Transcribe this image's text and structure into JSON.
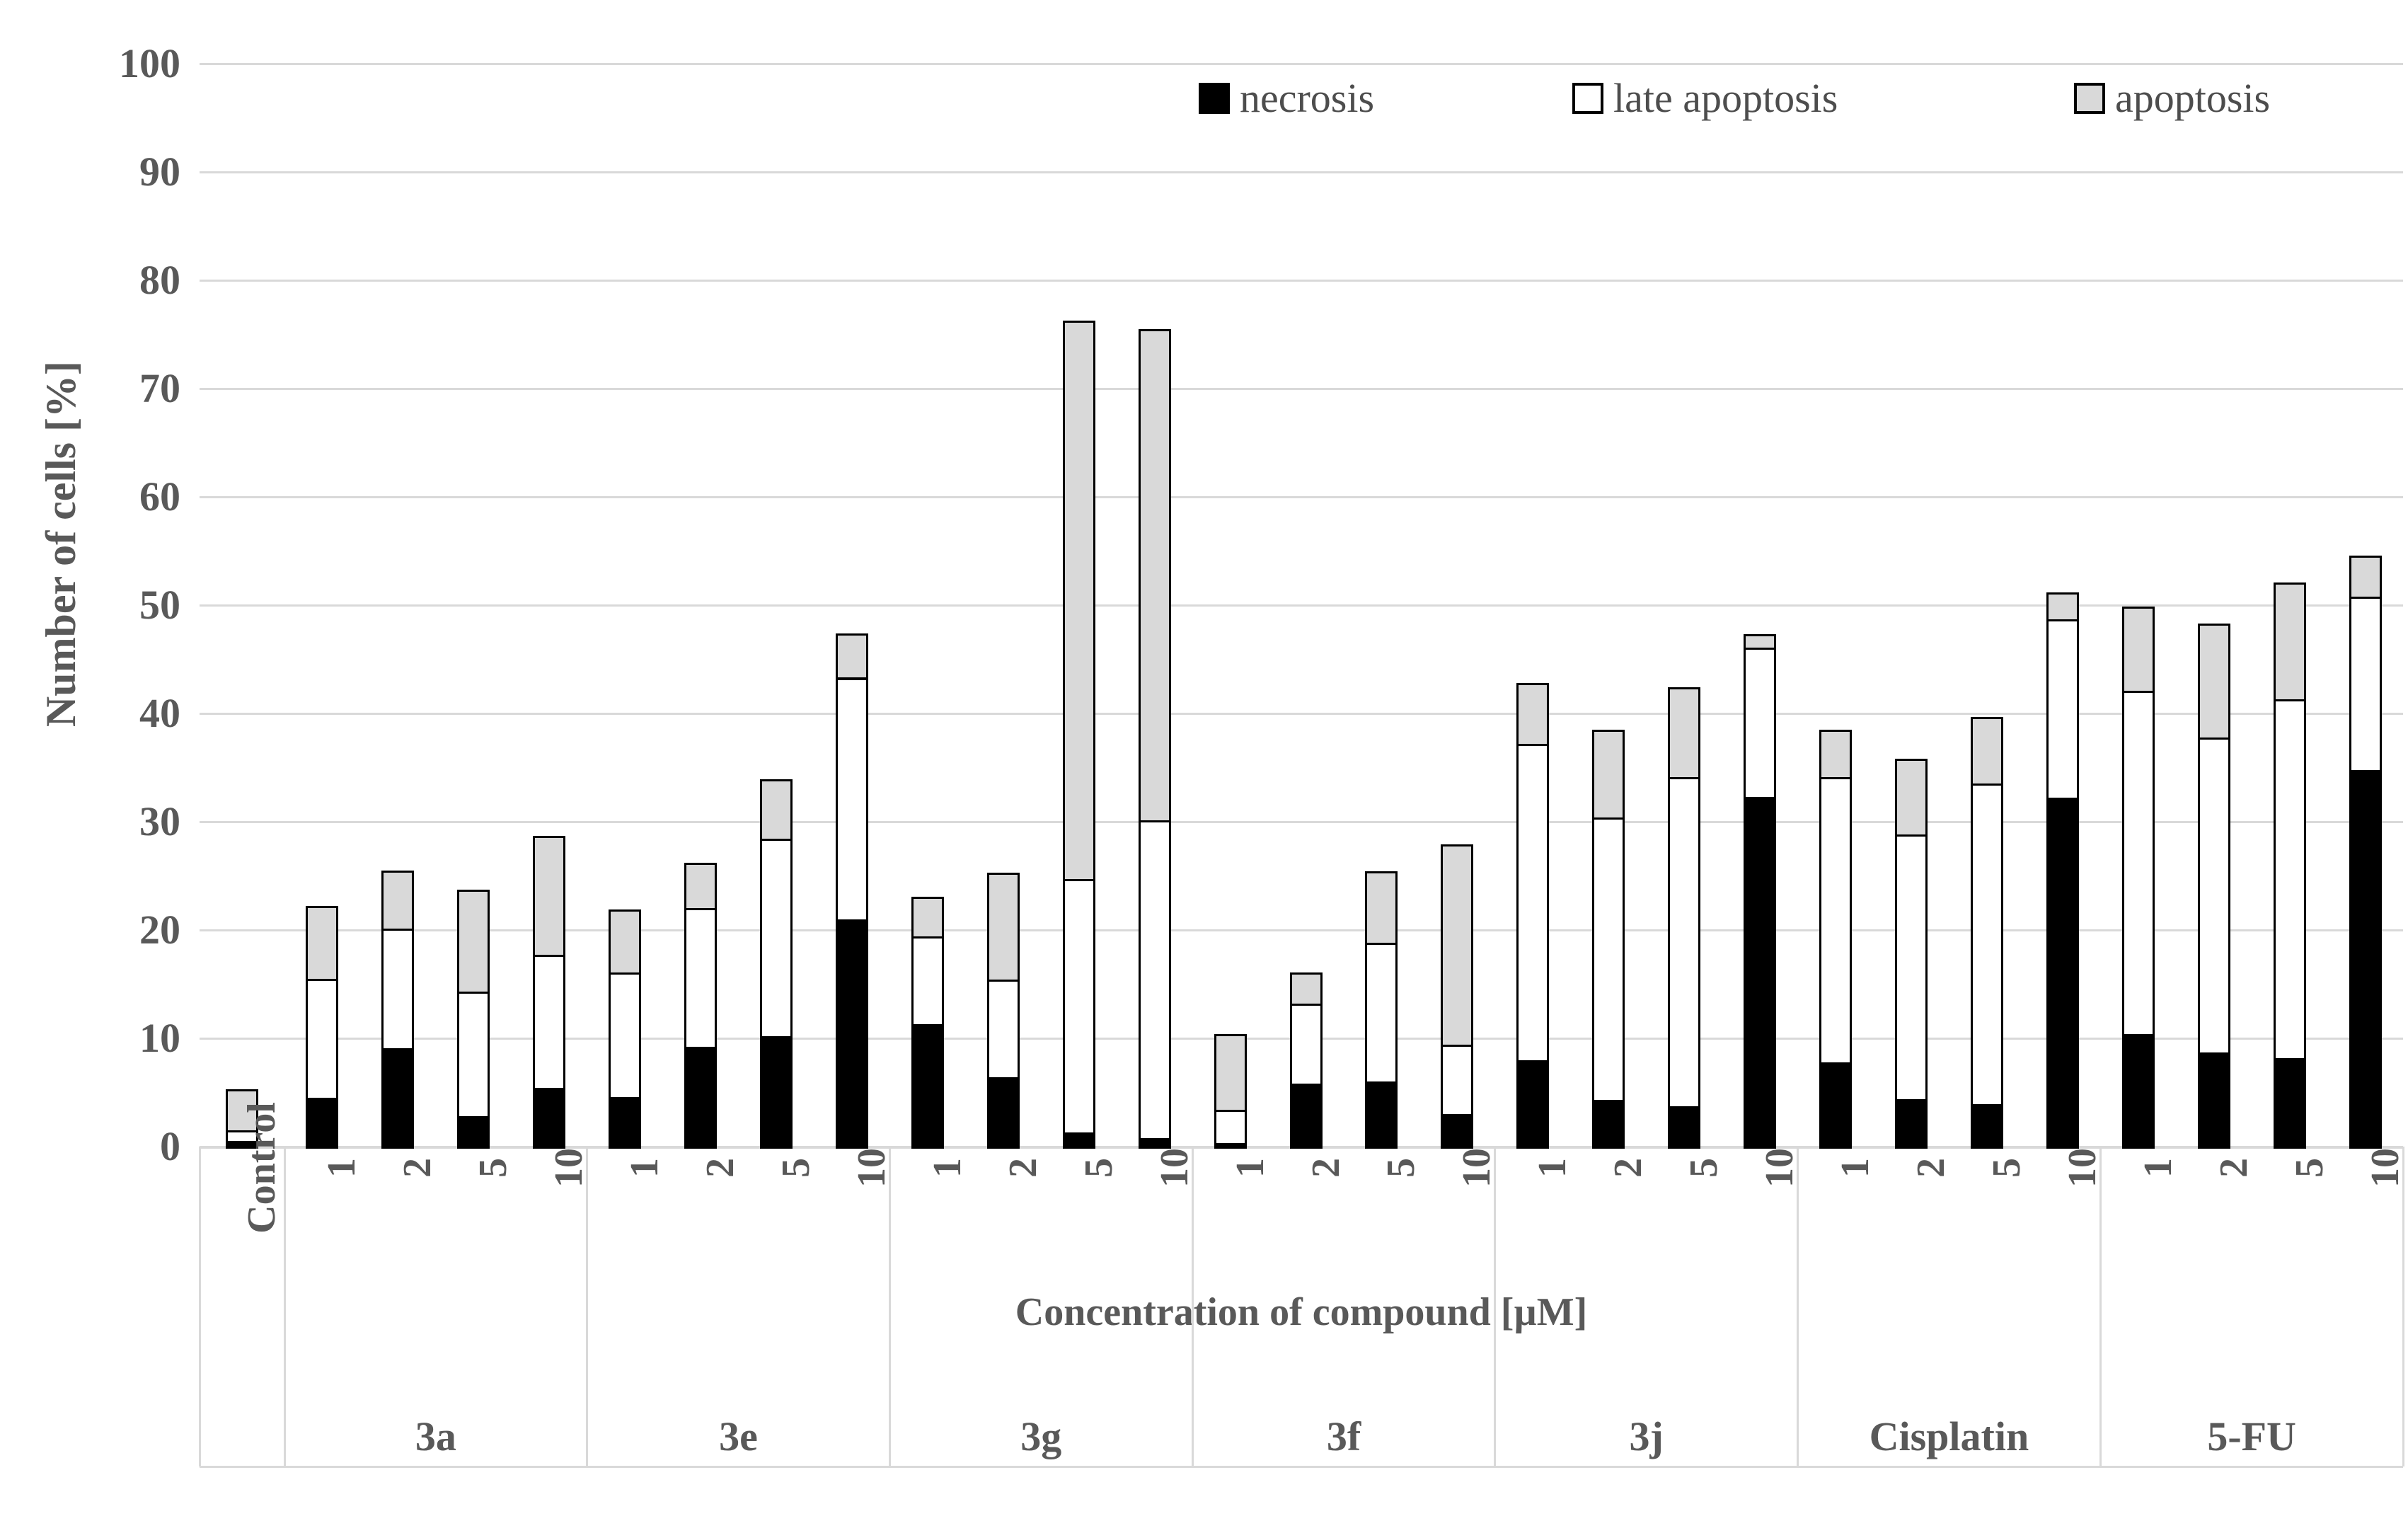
{
  "figure": {
    "background_color": "#ffffff",
    "text_color": "#595959",
    "grid_color": "#d9d9d9",
    "bar_border_color": "#000000"
  },
  "legend": {
    "items": [
      {
        "label": "necrosis",
        "color": "#000000"
      },
      {
        "label": "late apoptosis",
        "color": "#ffffff"
      },
      {
        "label": "apoptosis",
        "color": "#d9d9d9"
      }
    ]
  },
  "chart_data": {
    "type": "bar",
    "stacked": true,
    "title": "",
    "ylabel": "Number of cells [%]",
    "xlabel": "Concentration of compound [µM]",
    "ylim": [
      0,
      100
    ],
    "yticks": [
      0,
      10,
      20,
      30,
      40,
      50,
      60,
      70,
      80,
      90,
      100
    ],
    "grid": true,
    "legend_position": "top-right-inside",
    "series_order": [
      "necrosis",
      "late apoptosis",
      "apoptosis"
    ],
    "series_colors": [
      "#000000",
      "#ffffff",
      "#d9d9d9"
    ],
    "groups": [
      {
        "group_label": "",
        "bars": [
          {
            "tick": "Control",
            "necrosis": 0.5,
            "late_apoptosis": 1.0,
            "apoptosis": 3.8
          }
        ]
      },
      {
        "group_label": "3a",
        "bars": [
          {
            "tick": "1",
            "necrosis": 4.5,
            "late_apoptosis": 11.0,
            "apoptosis": 6.7
          },
          {
            "tick": "2",
            "necrosis": 9.1,
            "late_apoptosis": 11.0,
            "apoptosis": 5.4
          },
          {
            "tick": "5",
            "necrosis": 2.8,
            "late_apoptosis": 11.5,
            "apoptosis": 9.4
          },
          {
            "tick": "10",
            "necrosis": 5.4,
            "late_apoptosis": 12.3,
            "apoptosis": 11.0
          }
        ]
      },
      {
        "group_label": "3e",
        "bars": [
          {
            "tick": "1",
            "necrosis": 4.6,
            "late_apoptosis": 11.5,
            "apoptosis": 5.8
          },
          {
            "tick": "2",
            "necrosis": 9.2,
            "late_apoptosis": 12.8,
            "apoptosis": 4.2
          },
          {
            "tick": "5",
            "necrosis": 10.2,
            "late_apoptosis": 18.2,
            "apoptosis": 5.5
          },
          {
            "tick": "10",
            "necrosis": 21.0,
            "late_apoptosis": 22.3,
            "apoptosis": 4.1
          }
        ]
      },
      {
        "group_label": "3g",
        "bars": [
          {
            "tick": "1",
            "necrosis": 11.3,
            "late_apoptosis": 8.1,
            "apoptosis": 3.7
          },
          {
            "tick": "2",
            "necrosis": 6.4,
            "late_apoptosis": 9.0,
            "apoptosis": 9.9
          },
          {
            "tick": "5",
            "necrosis": 1.3,
            "late_apoptosis": 23.4,
            "apoptosis": 51.6
          },
          {
            "tick": "10",
            "necrosis": 0.8,
            "late_apoptosis": 29.3,
            "apoptosis": 45.4
          }
        ]
      },
      {
        "group_label": "3f",
        "bars": [
          {
            "tick": "1",
            "necrosis": 0.3,
            "late_apoptosis": 3.1,
            "apoptosis": 7.0
          },
          {
            "tick": "2",
            "necrosis": 5.8,
            "late_apoptosis": 7.4,
            "apoptosis": 2.9
          },
          {
            "tick": "5",
            "necrosis": 6.0,
            "late_apoptosis": 12.8,
            "apoptosis": 6.6
          },
          {
            "tick": "10",
            "necrosis": 3.0,
            "late_apoptosis": 6.4,
            "apoptosis": 18.5
          }
        ]
      },
      {
        "group_label": "3j",
        "bars": [
          {
            "tick": "1",
            "necrosis": 8.0,
            "late_apoptosis": 29.2,
            "apoptosis": 5.6
          },
          {
            "tick": "2",
            "necrosis": 4.3,
            "late_apoptosis": 26.1,
            "apoptosis": 8.1
          },
          {
            "tick": "5",
            "necrosis": 3.7,
            "late_apoptosis": 30.4,
            "apoptosis": 8.3
          },
          {
            "tick": "10",
            "necrosis": 32.3,
            "late_apoptosis": 13.8,
            "apoptosis": 1.2
          }
        ]
      },
      {
        "group_label": "Cisplatin",
        "bars": [
          {
            "tick": "1",
            "necrosis": 7.8,
            "late_apoptosis": 26.3,
            "apoptosis": 4.4
          },
          {
            "tick": "2",
            "necrosis": 4.4,
            "late_apoptosis": 24.4,
            "apoptosis": 7.0
          },
          {
            "tick": "5",
            "necrosis": 3.9,
            "late_apoptosis": 29.6,
            "apoptosis": 6.2
          },
          {
            "tick": "10",
            "necrosis": 32.2,
            "late_apoptosis": 16.5,
            "apoptosis": 2.5
          }
        ]
      },
      {
        "group_label": "5-FU",
        "bars": [
          {
            "tick": "1",
            "necrosis": 10.4,
            "late_apoptosis": 31.7,
            "apoptosis": 7.8
          },
          {
            "tick": "2",
            "necrosis": 8.7,
            "late_apoptosis": 29.1,
            "apoptosis": 10.5
          },
          {
            "tick": "5",
            "necrosis": 8.2,
            "late_apoptosis": 33.1,
            "apoptosis": 10.8
          },
          {
            "tick": "10",
            "necrosis": 34.8,
            "late_apoptosis": 16.0,
            "apoptosis": 3.8
          }
        ]
      }
    ]
  }
}
